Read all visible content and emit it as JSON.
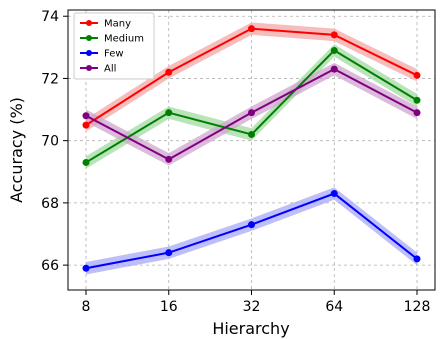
{
  "chart_data": {
    "type": "line",
    "categories": [
      "8",
      "16",
      "32",
      "64",
      "128"
    ],
    "xlabel": "Hierarchy",
    "ylabel": "Accuracy (%)",
    "ylim": [
      65.2,
      74.2
    ],
    "yticks": [
      66,
      68,
      70,
      72,
      74
    ],
    "grid": true,
    "legend_position": "top-left",
    "series": [
      {
        "name": "Many",
        "color": "#ff0000",
        "band_color": "#f4a6a6",
        "values": [
          70.5,
          72.2,
          73.6,
          73.4,
          72.1
        ],
        "band": 0.2
      },
      {
        "name": "Medium",
        "color": "#008000",
        "band_color": "#a3d9a3",
        "values": [
          69.3,
          70.9,
          70.2,
          72.9,
          71.3
        ],
        "band": 0.2
      },
      {
        "name": "Few",
        "color": "#0000ff",
        "band_color": "#a8a8f5",
        "values": [
          65.9,
          66.4,
          67.3,
          68.3,
          66.2
        ],
        "band": 0.2
      },
      {
        "name": "All",
        "color": "#800080",
        "band_color": "#cfa6cf",
        "values": [
          70.8,
          69.4,
          70.9,
          72.3,
          70.9
        ],
        "band": 0.2
      }
    ]
  }
}
